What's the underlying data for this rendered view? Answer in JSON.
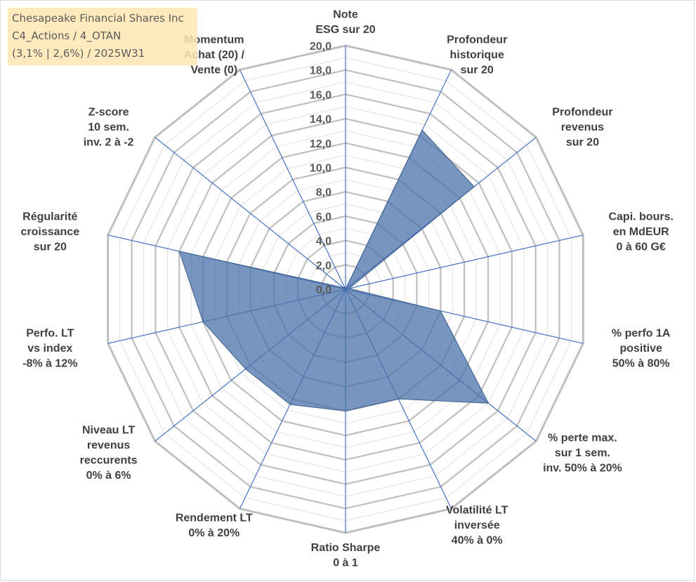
{
  "header": {
    "lines": [
      "Chesapeake Financial Shares Inc",
      "C4_Actions / 4_OTAN",
      "(3,1% | 2,6%) / 2025W31"
    ]
  },
  "chart_data": {
    "type": "radar",
    "rmax": 20,
    "tick_step": 2,
    "tick_labels": [
      "0,0",
      "2,0",
      "4,0",
      "6,0",
      "8,0",
      "10,0",
      "12,0",
      "14,0",
      "16,0",
      "18,0",
      "20,0"
    ],
    "axes": [
      {
        "label": [
          "Note",
          "ESG sur 20"
        ],
        "value": 0
      },
      {
        "label": [
          "Profondeur",
          "historique",
          "sur 20"
        ],
        "value": 14.5
      },
      {
        "label": [
          "Profondeur",
          "revenus",
          "sur 20"
        ],
        "value": 13.5
      },
      {
        "label": [
          "Capi. bours.",
          "en MdEUR",
          "0 à 60 G€"
        ],
        "value": 0.3
      },
      {
        "label": [
          "% perfo 1A",
          "positive",
          "50% à 80%"
        ],
        "value": 8
      },
      {
        "label": [
          "% perte max.",
          "sur 1 sem.",
          "inv. 50% à 20%"
        ],
        "value": 15
      },
      {
        "label": [
          "Volatilité LT",
          "inversée",
          "40% à 0%"
        ],
        "value": 10
      },
      {
        "label": [
          "Ratio Sharpe",
          "0 à 1"
        ],
        "value": 10
      },
      {
        "label": [
          "Rendement LT",
          "0% à 20%"
        ],
        "value": 10.5
      },
      {
        "label": [
          "Niveau LT",
          "revenus",
          "reccurents",
          "0% à 6%"
        ],
        "value": 10.5
      },
      {
        "label": [
          "Perfo. LT",
          "vs index",
          "-8% à 12%"
        ],
        "value": 12
      },
      {
        "label": [
          "Régularité",
          "croissance",
          "sur 20"
        ],
        "value": 14
      },
      {
        "label": [
          "Z-score",
          "10 sem.",
          "inv. 2 à -2"
        ],
        "value": 0.2
      },
      {
        "label": [
          "Momentum",
          "Achat (20) /",
          "Vente (0)"
        ],
        "value": 0.2
      }
    ],
    "series": [
      {
        "values": [
          0,
          14.5,
          13.5,
          0.3,
          8,
          15,
          10,
          10,
          10.5,
          10.5,
          12,
          14,
          0.2,
          0.2
        ]
      }
    ],
    "colors": {
      "fill": "#4a72a8",
      "fill_opacity": 0.75,
      "axis": "#4472c4",
      "grid_major": "#bfbfbf",
      "grid_minor": "#e0e0e0",
      "text": "#404040"
    }
  }
}
